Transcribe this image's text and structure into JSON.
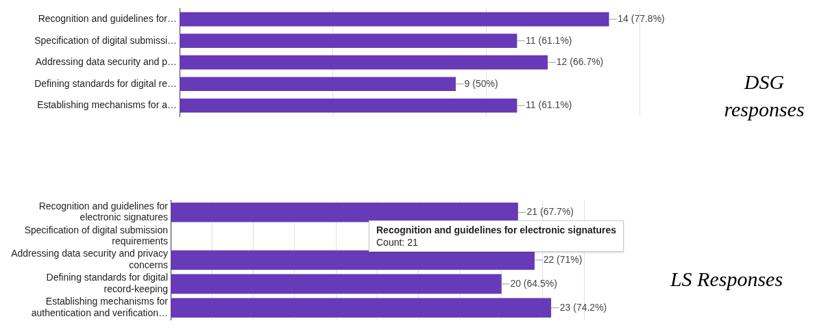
{
  "chart_data": [
    {
      "type": "bar",
      "orientation": "horizontal",
      "categories": [
        "Recognition and guidelines for…",
        "Specification of digital submissi…",
        "Addressing data security and p…",
        "Defining standards for digital re…",
        "Establishing mechanisms for a…"
      ],
      "values": [
        14,
        11,
        12,
        9,
        11
      ],
      "color": "#673ab7",
      "xlim": [
        0,
        15
      ],
      "xticks": [
        {
          "value": 0,
          "label": null
        },
        {
          "value": 5,
          "label": null
        },
        {
          "value": 10,
          "label": null
        },
        {
          "value": 15,
          "label": null
        }
      ],
      "grid": "x",
      "tick_labels": "y",
      "value_labels": [
        "14 (77.8%)",
        "11 (61.1%)",
        "12 (66.7%)",
        "9 (50%)",
        "11 (61.1%)"
      ],
      "annotations": [
        "DSG responses"
      ]
    },
    {
      "type": "bar",
      "orientation": "horizontal",
      "categories": [
        "Recognition and guidelines for electronic signatures",
        "Specification of digital submission requirements",
        "Addressing data security and privacy concerns",
        "Defining standards for digital record-keeping",
        "Establishing mechanisms for authentication and verification…"
      ],
      "values": [
        21,
        null,
        22,
        20,
        23
      ],
      "color": "#673ab7",
      "xlim": [
        0,
        25
      ],
      "xticks": [
        {
          "value": 0,
          "label": null
        },
        {
          "value": 2.5,
          "label": null
        },
        {
          "value": 5,
          "label": null
        },
        {
          "value": 7.5,
          "label": null
        },
        {
          "value": 10,
          "label": null
        },
        {
          "value": 12.5,
          "label": null
        },
        {
          "value": 15,
          "label": null
        },
        {
          "value": 17.5,
          "label": null
        },
        {
          "value": 20,
          "label": null
        },
        {
          "value": 22.5,
          "label": null
        },
        {
          "value": 25,
          "label": null
        }
      ],
      "grid": "x",
      "tick_labels": "y",
      "value_labels": [
        "21 (67.7%)",
        null,
        "22 (71%)",
        "20 (64.5%)",
        "23 (74.2%)"
      ],
      "annotations": [
        "LS Responses",
        "Recognition and guidelines for electronic signatures",
        "Count: 21"
      ]
    }
  ]
}
